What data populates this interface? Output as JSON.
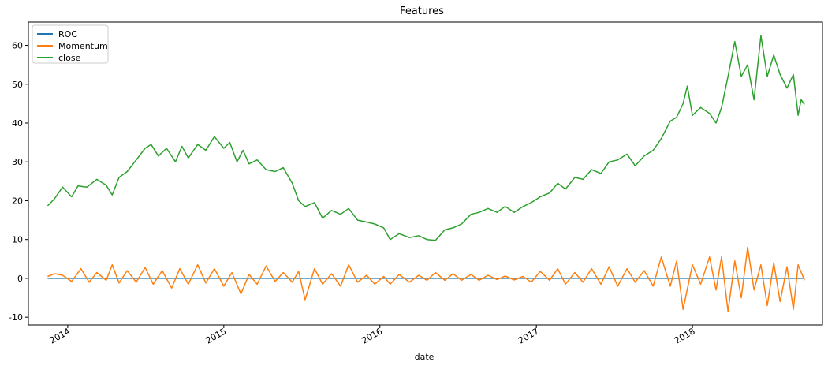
{
  "chart_data": {
    "type": "line",
    "title": "Features",
    "xlabel": "date",
    "ylabel": "",
    "x_range": [
      "2013-10-01",
      "2018-11-01"
    ],
    "ylim": [
      -12,
      66
    ],
    "y_ticks": [
      -10,
      0,
      10,
      20,
      30,
      40,
      50,
      60
    ],
    "x_ticks": [
      {
        "date": "2014-01-01",
        "label": "2014"
      },
      {
        "date": "2015-01-01",
        "label": "2015"
      },
      {
        "date": "2016-01-01",
        "label": "2016"
      },
      {
        "date": "2017-01-01",
        "label": "2017"
      },
      {
        "date": "2018-01-01",
        "label": "2018"
      }
    ],
    "grid": false,
    "legend_position": "top-left",
    "series": [
      {
        "name": "ROC",
        "color": "#1f77b4",
        "points": [
          [
            "2013-11-15",
            0
          ],
          [
            "2014-06-01",
            0
          ],
          [
            "2015-01-01",
            0
          ],
          [
            "2015-07-01",
            0
          ],
          [
            "2016-01-01",
            0
          ],
          [
            "2016-07-01",
            0
          ],
          [
            "2017-01-01",
            0
          ],
          [
            "2017-07-01",
            0
          ],
          [
            "2018-01-01",
            0
          ],
          [
            "2018-09-20",
            0
          ]
        ]
      },
      {
        "name": "Momentum",
        "color": "#ff7f0e",
        "points": [
          [
            "2013-11-15",
            0.5
          ],
          [
            "2013-12-01",
            1.2
          ],
          [
            "2013-12-20",
            0.8
          ],
          [
            "2014-01-10",
            -0.8
          ],
          [
            "2014-02-01",
            2.5
          ],
          [
            "2014-02-20",
            -1.0
          ],
          [
            "2014-03-10",
            1.5
          ],
          [
            "2014-04-01",
            -0.5
          ],
          [
            "2014-04-15",
            3.5
          ],
          [
            "2014-05-01",
            -1.2
          ],
          [
            "2014-05-20",
            2.0
          ],
          [
            "2014-06-10",
            -1.0
          ],
          [
            "2014-07-01",
            2.8
          ],
          [
            "2014-07-20",
            -1.5
          ],
          [
            "2014-08-10",
            2.0
          ],
          [
            "2014-09-01",
            -2.5
          ],
          [
            "2014-09-20",
            2.5
          ],
          [
            "2014-10-10",
            -1.5
          ],
          [
            "2014-11-01",
            3.5
          ],
          [
            "2014-11-20",
            -1.2
          ],
          [
            "2014-12-10",
            2.5
          ],
          [
            "2015-01-01",
            -2.0
          ],
          [
            "2015-01-20",
            1.5
          ],
          [
            "2015-02-10",
            -4.0
          ],
          [
            "2015-03-01",
            1.0
          ],
          [
            "2015-03-20",
            -1.5
          ],
          [
            "2015-04-10",
            3.2
          ],
          [
            "2015-05-01",
            -0.8
          ],
          [
            "2015-05-20",
            1.5
          ],
          [
            "2015-06-10",
            -1.0
          ],
          [
            "2015-06-25",
            1.8
          ],
          [
            "2015-07-10",
            -5.5
          ],
          [
            "2015-08-01",
            2.5
          ],
          [
            "2015-08-20",
            -1.5
          ],
          [
            "2015-09-10",
            1.2
          ],
          [
            "2015-10-01",
            -2.0
          ],
          [
            "2015-10-20",
            3.5
          ],
          [
            "2015-11-10",
            -1.0
          ],
          [
            "2015-12-01",
            0.8
          ],
          [
            "2015-12-20",
            -1.5
          ],
          [
            "2016-01-10",
            0.5
          ],
          [
            "2016-01-25",
            -1.5
          ],
          [
            "2016-02-15",
            1.0
          ],
          [
            "2016-03-10",
            -1.0
          ],
          [
            "2016-04-01",
            0.8
          ],
          [
            "2016-04-20",
            -0.5
          ],
          [
            "2016-05-10",
            1.5
          ],
          [
            "2016-06-01",
            -0.5
          ],
          [
            "2016-06-20",
            1.2
          ],
          [
            "2016-07-10",
            -0.5
          ],
          [
            "2016-08-01",
            1.0
          ],
          [
            "2016-08-20",
            -0.5
          ],
          [
            "2016-09-10",
            0.8
          ],
          [
            "2016-10-01",
            -0.3
          ],
          [
            "2016-10-20",
            0.6
          ],
          [
            "2016-11-10",
            -0.4
          ],
          [
            "2016-12-01",
            0.5
          ],
          [
            "2016-12-20",
            -1.0
          ],
          [
            "2017-01-10",
            1.8
          ],
          [
            "2017-02-01",
            -0.5
          ],
          [
            "2017-02-20",
            2.5
          ],
          [
            "2017-03-10",
            -1.5
          ],
          [
            "2017-04-01",
            1.5
          ],
          [
            "2017-04-20",
            -1.0
          ],
          [
            "2017-05-10",
            2.5
          ],
          [
            "2017-06-01",
            -1.5
          ],
          [
            "2017-06-20",
            3.0
          ],
          [
            "2017-07-10",
            -2.0
          ],
          [
            "2017-08-01",
            2.5
          ],
          [
            "2017-08-20",
            -1.0
          ],
          [
            "2017-09-10",
            2.0
          ],
          [
            "2017-10-01",
            -2.0
          ],
          [
            "2017-10-20",
            5.5
          ],
          [
            "2017-11-10",
            -2.0
          ],
          [
            "2017-11-25",
            4.5
          ],
          [
            "2017-12-10",
            -8.0
          ],
          [
            "2018-01-01",
            3.5
          ],
          [
            "2018-01-20",
            -1.5
          ],
          [
            "2018-02-10",
            5.5
          ],
          [
            "2018-02-25",
            -3.0
          ],
          [
            "2018-03-10",
            5.5
          ],
          [
            "2018-03-25",
            -8.5
          ],
          [
            "2018-04-10",
            4.5
          ],
          [
            "2018-04-25",
            -5.0
          ],
          [
            "2018-05-10",
            8.0
          ],
          [
            "2018-05-25",
            -3.0
          ],
          [
            "2018-06-10",
            3.5
          ],
          [
            "2018-06-25",
            -7.0
          ],
          [
            "2018-07-10",
            4.0
          ],
          [
            "2018-07-25",
            -6.0
          ],
          [
            "2018-08-10",
            3.0
          ],
          [
            "2018-08-25",
            -8.0
          ],
          [
            "2018-09-05",
            3.5
          ],
          [
            "2018-09-20",
            -0.5
          ]
        ]
      },
      {
        "name": "close",
        "color": "#2ca02c",
        "points": [
          [
            "2013-11-15",
            18.7
          ],
          [
            "2013-12-01",
            20.5
          ],
          [
            "2013-12-20",
            23.5
          ],
          [
            "2014-01-10",
            21.0
          ],
          [
            "2014-01-25",
            23.8
          ],
          [
            "2014-02-15",
            23.5
          ],
          [
            "2014-03-10",
            25.5
          ],
          [
            "2014-04-01",
            24.0
          ],
          [
            "2014-04-15",
            21.5
          ],
          [
            "2014-05-01",
            26.0
          ],
          [
            "2014-05-20",
            27.5
          ],
          [
            "2014-06-10",
            30.5
          ],
          [
            "2014-07-01",
            33.5
          ],
          [
            "2014-07-15",
            34.5
          ],
          [
            "2014-08-01",
            31.5
          ],
          [
            "2014-08-20",
            33.5
          ],
          [
            "2014-09-10",
            30.0
          ],
          [
            "2014-09-25",
            34.0
          ],
          [
            "2014-10-10",
            31.0
          ],
          [
            "2014-11-01",
            34.5
          ],
          [
            "2014-11-20",
            33.0
          ],
          [
            "2014-12-10",
            36.5
          ],
          [
            "2015-01-01",
            33.5
          ],
          [
            "2015-01-15",
            35.0
          ],
          [
            "2015-02-01",
            30.0
          ],
          [
            "2015-02-15",
            33.0
          ],
          [
            "2015-03-01",
            29.5
          ],
          [
            "2015-03-20",
            30.5
          ],
          [
            "2015-04-10",
            28.0
          ],
          [
            "2015-05-01",
            27.5
          ],
          [
            "2015-05-20",
            28.5
          ],
          [
            "2015-06-10",
            24.5
          ],
          [
            "2015-06-25",
            20.0
          ],
          [
            "2015-07-10",
            18.5
          ],
          [
            "2015-08-01",
            19.5
          ],
          [
            "2015-08-20",
            15.5
          ],
          [
            "2015-09-10",
            17.5
          ],
          [
            "2015-10-01",
            16.5
          ],
          [
            "2015-10-20",
            18.0
          ],
          [
            "2015-11-10",
            15.0
          ],
          [
            "2015-12-01",
            14.5
          ],
          [
            "2015-12-20",
            14.0
          ],
          [
            "2016-01-10",
            13.0
          ],
          [
            "2016-01-25",
            10.0
          ],
          [
            "2016-02-15",
            11.5
          ],
          [
            "2016-03-10",
            10.5
          ],
          [
            "2016-04-01",
            11.0
          ],
          [
            "2016-04-20",
            10.0
          ],
          [
            "2016-05-10",
            9.8
          ],
          [
            "2016-06-01",
            12.5
          ],
          [
            "2016-06-20",
            13.0
          ],
          [
            "2016-07-10",
            14.0
          ],
          [
            "2016-08-01",
            16.5
          ],
          [
            "2016-08-20",
            17.0
          ],
          [
            "2016-09-10",
            18.0
          ],
          [
            "2016-10-01",
            17.0
          ],
          [
            "2016-10-20",
            18.5
          ],
          [
            "2016-11-10",
            17.0
          ],
          [
            "2016-12-01",
            18.5
          ],
          [
            "2016-12-20",
            19.5
          ],
          [
            "2017-01-10",
            21.0
          ],
          [
            "2017-02-01",
            22.0
          ],
          [
            "2017-02-20",
            24.5
          ],
          [
            "2017-03-10",
            23.0
          ],
          [
            "2017-04-01",
            26.0
          ],
          [
            "2017-04-20",
            25.5
          ],
          [
            "2017-05-10",
            28.0
          ],
          [
            "2017-06-01",
            27.0
          ],
          [
            "2017-06-20",
            30.0
          ],
          [
            "2017-07-10",
            30.5
          ],
          [
            "2017-08-01",
            32.0
          ],
          [
            "2017-08-20",
            29.0
          ],
          [
            "2017-09-10",
            31.5
          ],
          [
            "2017-10-01",
            33.0
          ],
          [
            "2017-10-20",
            36.0
          ],
          [
            "2017-11-10",
            40.5
          ],
          [
            "2017-11-25",
            41.5
          ],
          [
            "2017-12-10",
            45.0
          ],
          [
            "2017-12-20",
            49.5
          ],
          [
            "2018-01-01",
            42.0
          ],
          [
            "2018-01-20",
            44.0
          ],
          [
            "2018-02-10",
            42.5
          ],
          [
            "2018-02-25",
            40.0
          ],
          [
            "2018-03-10",
            44.0
          ],
          [
            "2018-03-25",
            52.0
          ],
          [
            "2018-04-10",
            61.0
          ],
          [
            "2018-04-25",
            52.0
          ],
          [
            "2018-05-10",
            55.0
          ],
          [
            "2018-05-25",
            46.0
          ],
          [
            "2018-06-10",
            62.5
          ],
          [
            "2018-06-25",
            52.0
          ],
          [
            "2018-07-10",
            57.5
          ],
          [
            "2018-07-25",
            52.5
          ],
          [
            "2018-08-10",
            49.0
          ],
          [
            "2018-08-25",
            52.5
          ],
          [
            "2018-09-05",
            42.0
          ],
          [
            "2018-09-12",
            46.0
          ],
          [
            "2018-09-20",
            44.8
          ]
        ]
      }
    ]
  }
}
